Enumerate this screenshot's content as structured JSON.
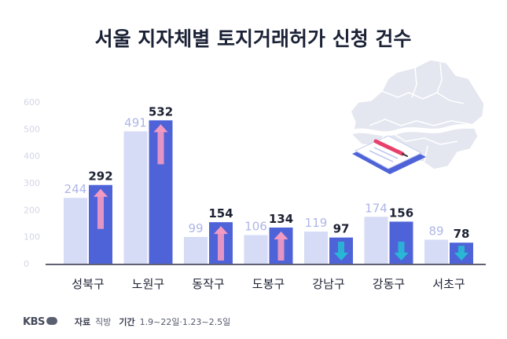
{
  "chart_data": {
    "type": "bar",
    "title": "서울 지자체별 토지거래허가 신청 건수",
    "categories": [
      "성북구",
      "노원구",
      "동작구",
      "도봉구",
      "강남구",
      "강동구",
      "서초구"
    ],
    "series": [
      {
        "values": [
          244,
          491,
          99,
          106,
          119,
          174,
          89
        ]
      },
      {
        "values": [
          292,
          532,
          154,
          134,
          97,
          156,
          78
        ]
      }
    ],
    "trend": [
      "up",
      "up",
      "up",
      "up",
      "down",
      "down",
      "down"
    ],
    "yticks": [
      0,
      100,
      200,
      300,
      400,
      500,
      600
    ],
    "ylim": [
      0,
      600
    ],
    "grid": false,
    "colors": {
      "prev": "#d6dbf6",
      "curr": "#4f63d8",
      "prev_label": "#aeb6e6",
      "curr_label": "#1d2233",
      "up_arrow": "#f39ac2",
      "down_arrow": "#28b8d6",
      "axis": "#2b2f45",
      "tick": "#d3d6e6",
      "title": "#1b2236",
      "map": "#e4e6f0"
    }
  },
  "footer": {
    "brand": "KBS",
    "source_label": "자료",
    "source": "직방",
    "period_label": "기간",
    "period": "1.9~22일·1.23~2.5일"
  }
}
